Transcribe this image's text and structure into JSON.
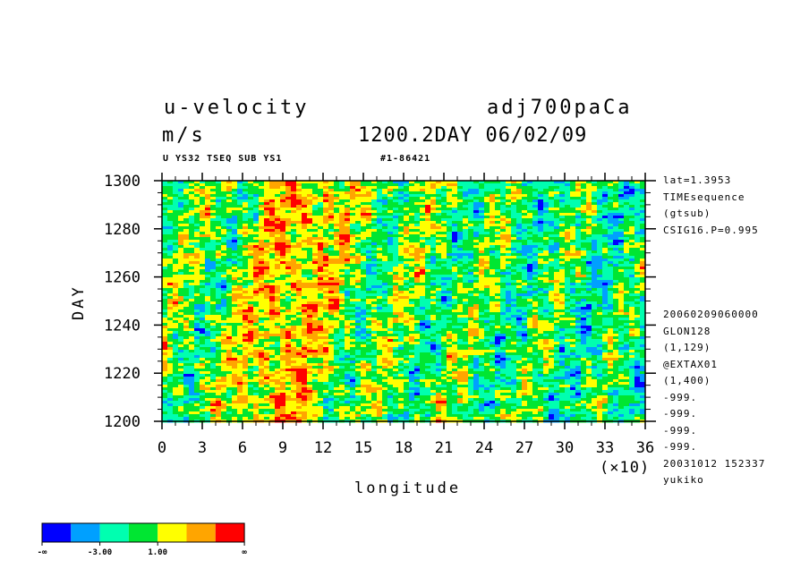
{
  "header": {
    "variable": "u-velocity",
    "dataset": "adj700paCa",
    "units": "m/s",
    "time": "1200.2DAY 06/02/09",
    "subtitle_left": "U YS32 TSEQ SUB YS1",
    "subtitle_right": "#1-86421"
  },
  "side_info": {
    "top": [
      "lat=1.3953",
      "TIMEsequence",
      "(gtsub)",
      "CSIG16.P=0.995"
    ],
    "bottom": [
      "20060209060000",
      "GLON128",
      "(1,129)",
      "@EXTAX01",
      "(1,400)",
      "-999.",
      "-999.",
      "-999.",
      "-999.",
      "20031012 152337",
      "yukiko"
    ]
  },
  "chart_data": {
    "type": "heatmap",
    "xlabel": "longitude",
    "ylabel": "DAY",
    "x_multiplier_label": "(×10)",
    "xlim": [
      0,
      36
    ],
    "ylim": [
      1200,
      1300
    ],
    "x_ticks": [
      "0",
      "3",
      "6",
      "9",
      "12",
      "15",
      "18",
      "21",
      "24",
      "27",
      "30",
      "33",
      "36"
    ],
    "y_ticks": [
      "1200",
      "1220",
      "1240",
      "1260",
      "1280",
      "1300"
    ],
    "x_tick_values": [
      0,
      3,
      6,
      9,
      12,
      15,
      18,
      21,
      24,
      27,
      30,
      33,
      36
    ],
    "y_tick_values": [
      1200,
      1220,
      1240,
      1260,
      1280,
      1300
    ],
    "colorbar": {
      "colors": [
        "#0000ff",
        "#00a0ff",
        "#00ffb0",
        "#00e632",
        "#ffff00",
        "#ffa500",
        "#ff0000"
      ],
      "labels": [
        "-∞",
        "-3.00",
        "1.00",
        "∞"
      ]
    }
  }
}
